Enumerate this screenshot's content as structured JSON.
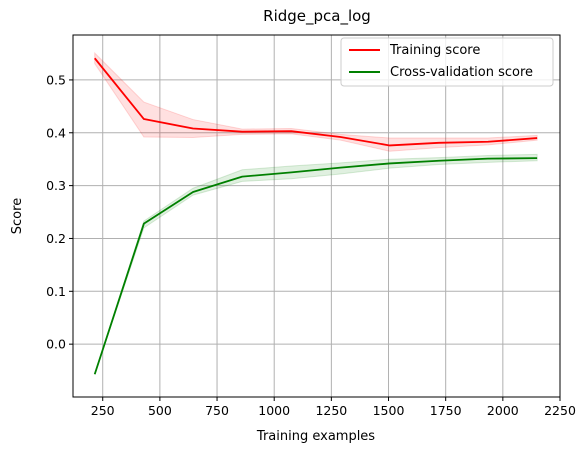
{
  "chart_data": {
    "type": "line",
    "title": "Ridge_pca_log",
    "xlabel": "Training examples",
    "ylabel": "Score",
    "xlim": [
      120,
      2250
    ],
    "ylim": [
      -0.1,
      0.585
    ],
    "xticks": [
      250,
      500,
      750,
      1000,
      1250,
      1500,
      1750,
      2000,
      2250
    ],
    "yticks": [
      0.0,
      0.1,
      0.2,
      0.3,
      0.4,
      0.5
    ],
    "xtick_labels": [
      "250",
      "500",
      "750",
      "1000",
      "1250",
      "1500",
      "1750",
      "2000",
      "2250"
    ],
    "ytick_labels": [
      "0.0",
      "0.1",
      "0.2",
      "0.3",
      "0.4",
      "0.5"
    ],
    "grid": true,
    "legend_position": "top-right",
    "x": [
      215,
      430,
      645,
      860,
      1075,
      1290,
      1505,
      1720,
      1935,
      2150
    ],
    "series": [
      {
        "name": "Training score",
        "color": "#ff0000",
        "band_color": "#ff0000",
        "values": [
          0.541,
          0.426,
          0.408,
          0.402,
          0.403,
          0.392,
          0.376,
          0.381,
          0.383,
          0.39
        ],
        "upper": [
          0.551,
          0.458,
          0.425,
          0.407,
          0.408,
          0.397,
          0.39,
          0.39,
          0.39,
          0.395
        ],
        "lower": [
          0.531,
          0.392,
          0.391,
          0.397,
          0.398,
          0.386,
          0.365,
          0.372,
          0.377,
          0.386
        ]
      },
      {
        "name": "Cross-validation score",
        "color": "#008000",
        "band_color": "#008000",
        "values": [
          -0.057,
          0.228,
          0.288,
          0.317,
          0.325,
          0.334,
          0.342,
          0.347,
          0.351,
          0.352
        ],
        "upper": [
          -0.057,
          0.233,
          0.295,
          0.33,
          0.337,
          0.343,
          0.35,
          0.353,
          0.357,
          0.359
        ],
        "lower": [
          -0.057,
          0.22,
          0.282,
          0.308,
          0.313,
          0.322,
          0.333,
          0.34,
          0.344,
          0.347
        ]
      }
    ]
  }
}
